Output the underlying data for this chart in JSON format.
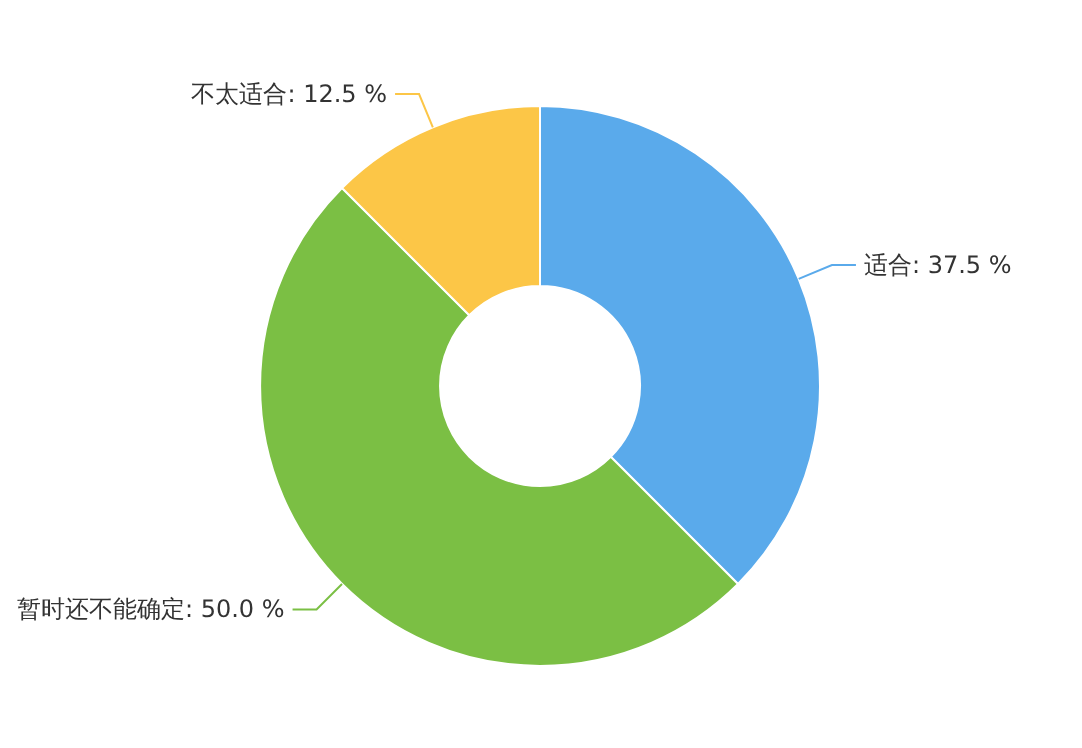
{
  "chart_data": {
    "type": "donut",
    "categories": [
      "适合",
      "暂时还不能确定",
      "不太适合"
    ],
    "values": [
      37.5,
      50,
      12.5
    ],
    "value_labels": [
      "37.5 %",
      "50.0 %",
      "12.5 %"
    ],
    "colors": [
      "#5aaaeb",
      "#7bbf44",
      "#fcc647"
    ]
  }
}
